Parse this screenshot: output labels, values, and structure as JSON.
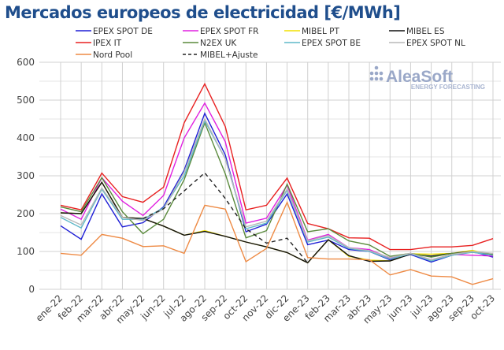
{
  "chart_data": {
    "type": "line",
    "title": "Mercados europeos de electricidad [€/MWh]",
    "xlabel": "",
    "ylabel": "",
    "ylim": [
      0,
      600
    ],
    "yticks": [
      0,
      100,
      200,
      300,
      400,
      500,
      600
    ],
    "grid": true,
    "legend_position": "top",
    "categories": [
      "ene-22",
      "feb-22",
      "mar-22",
      "abr-22",
      "may-22",
      "jun-22",
      "jul-22",
      "ago-22",
      "sep-22",
      "oct-22",
      "nov-22",
      "dic-22",
      "ene-23",
      "feb-23",
      "mar-23",
      "abr-23",
      "may-23",
      "jun-23",
      "jul-23",
      "ago-23",
      "sep-23",
      "oct-23"
    ],
    "series": [
      {
        "name": "EPEX SPOT DE",
        "color": "#1f1fd6",
        "values": [
          168,
          132,
          252,
          165,
          176,
          218,
          315,
          465,
          355,
          152,
          172,
          252,
          118,
          130,
          105,
          100,
          78,
          92,
          72,
          90,
          100,
          85
        ]
      },
      {
        "name": "EPEX SPOT FR",
        "color": "#e020e0",
        "values": [
          212,
          185,
          295,
          233,
          195,
          248,
          400,
          492,
          390,
          175,
          188,
          275,
          130,
          145,
          110,
          105,
          82,
          95,
          78,
          92,
          90,
          88
        ]
      },
      {
        "name": "MIBEL PT",
        "color": "#f2e000",
        "values": [
          202,
          200,
          283,
          190,
          187,
          167,
          143,
          155,
          140,
          125,
          112,
          97,
          70,
          131,
          87,
          77,
          75,
          94,
          93,
          95,
          103,
          90
        ]
      },
      {
        "name": "MIBEL ES",
        "color": "#111111",
        "values": [
          202,
          200,
          283,
          190,
          187,
          167,
          143,
          153,
          140,
          125,
          112,
          97,
          70,
          131,
          89,
          74,
          75,
          93,
          88,
          95,
          100,
          90
        ]
      },
      {
        "name": "IPEX IT",
        "color": "#e82020",
        "values": [
          222,
          210,
          307,
          245,
          230,
          270,
          440,
          543,
          430,
          210,
          222,
          294,
          174,
          160,
          136,
          135,
          105,
          105,
          112,
          112,
          116,
          134
        ]
      },
      {
        "name": "N2EX UK",
        "color": "#5a8a3c",
        "values": [
          218,
          205,
          295,
          205,
          147,
          185,
          290,
          440,
          305,
          136,
          155,
          278,
          152,
          160,
          128,
          117,
          87,
          95,
          85,
          95,
          98,
          92
        ]
      },
      {
        "name": "EPEX SPOT BE",
        "color": "#5fb8c8",
        "values": [
          190,
          162,
          265,
          185,
          185,
          215,
          300,
          445,
          345,
          160,
          175,
          262,
          125,
          138,
          108,
          100,
          80,
          94,
          75,
          90,
          98,
          90
        ]
      },
      {
        "name": "EPEX SPOT NL",
        "color": "#b8b8b8",
        "values": [
          195,
          170,
          268,
          190,
          182,
          212,
          310,
          450,
          345,
          165,
          180,
          265,
          128,
          142,
          110,
          102,
          84,
          95,
          78,
          92,
          100,
          95
        ]
      },
      {
        "name": "Nord Pool",
        "color": "#ee8a44",
        "values": [
          95,
          90,
          145,
          135,
          113,
          115,
          95,
          222,
          212,
          73,
          108,
          230,
          84,
          80,
          80,
          78,
          38,
          52,
          35,
          33,
          13,
          28
        ]
      },
      {
        "name": "MIBEL+Ajuste",
        "color": "#222222",
        "dashed": true,
        "values": [
          null,
          null,
          null,
          null,
          187,
          213,
          260,
          308,
          240,
          160,
          122,
          135,
          70,
          null,
          null,
          null,
          null,
          null,
          null,
          null,
          null,
          null
        ]
      }
    ]
  },
  "logo": {
    "name": "AleaSoft",
    "tagline": "ENERGY FORECASTING"
  }
}
